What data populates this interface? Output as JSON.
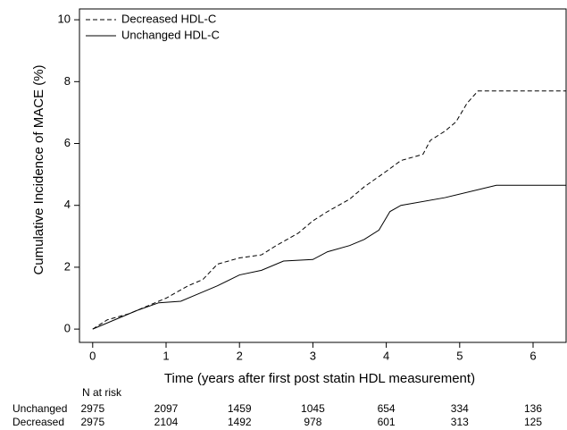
{
  "chart_data": {
    "type": "step",
    "y_label": "Cumulative Incidence of MACE (%)",
    "x_label": "Time (years after first post statin HDL measurement)",
    "xlim": [
      -0.18,
      6.45
    ],
    "ylim": [
      -0.43,
      10.35
    ],
    "xticks": [
      0,
      1,
      2,
      3,
      4,
      5,
      6
    ],
    "yticks": [
      0,
      2,
      4,
      6,
      8,
      10
    ],
    "legend": "top-left",
    "series": [
      {
        "name": "Decreased HDL-C",
        "color": "#000000",
        "dash": "dashed",
        "x": [
          0,
          0.2,
          0.5,
          0.8,
          1.0,
          1.3,
          1.5,
          1.7,
          2.0,
          2.3,
          2.5,
          2.8,
          3.0,
          3.2,
          3.5,
          3.7,
          4.0,
          4.2,
          4.5,
          4.6,
          4.8,
          4.95,
          5.1,
          5.25,
          6.45
        ],
        "values": [
          0,
          0.3,
          0.5,
          0.8,
          1.0,
          1.4,
          1.6,
          2.1,
          2.3,
          2.4,
          2.7,
          3.1,
          3.5,
          3.8,
          4.2,
          4.6,
          5.1,
          5.45,
          5.65,
          6.1,
          6.4,
          6.7,
          7.3,
          7.7,
          7.7
        ]
      },
      {
        "name": "Unchanged HDL-C",
        "color": "#000000",
        "dash": "solid",
        "x": [
          0,
          0.3,
          0.6,
          0.9,
          1.2,
          1.4,
          1.7,
          2.0,
          2.3,
          2.6,
          3.0,
          3.2,
          3.5,
          3.7,
          3.9,
          4.05,
          4.2,
          4.8,
          5.5,
          6.45
        ],
        "values": [
          0,
          0.3,
          0.6,
          0.85,
          0.9,
          1.1,
          1.4,
          1.75,
          1.9,
          2.2,
          2.25,
          2.5,
          2.7,
          2.9,
          3.2,
          3.8,
          4.0,
          4.25,
          4.65,
          4.65
        ]
      }
    ],
    "risk_table": {
      "title": "N at risk",
      "rows": [
        {
          "label": "Unchanged",
          "values": [
            2975,
            2097,
            1459,
            1045,
            654,
            334,
            136
          ]
        },
        {
          "label": "Decreased",
          "values": [
            2975,
            2104,
            1492,
            978,
            601,
            313,
            125
          ]
        }
      ]
    }
  }
}
